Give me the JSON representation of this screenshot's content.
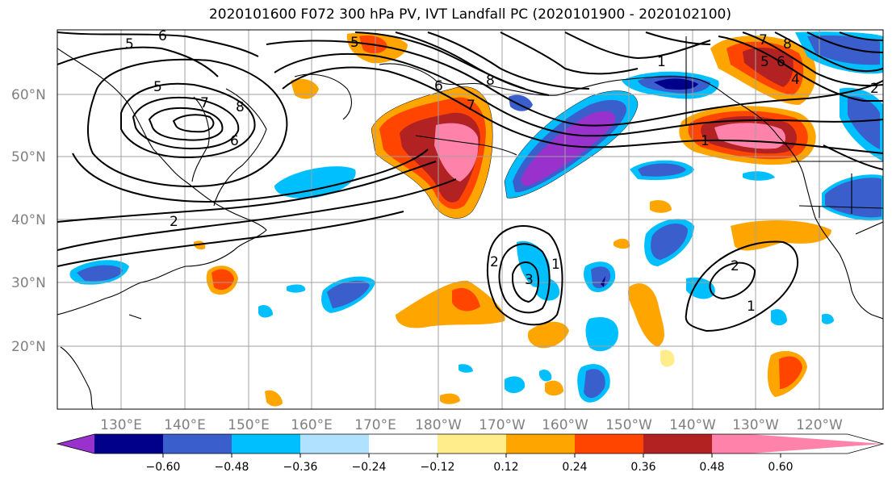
{
  "title": "2020101600 F072 300 hPa PV, IVT Landfall PC (2020101900 - 2020102100)",
  "lat_labels": [
    "60°N",
    "50°N",
    "40°N",
    "30°N",
    "20°N"
  ],
  "lon_labels": [
    "130°E",
    "140°E",
    "150°E",
    "160°E",
    "170°E",
    "180°W",
    "170°W",
    "160°W",
    "150°W",
    "140°W",
    "130°W",
    "120°W"
  ],
  "colorbar": {
    "colors": [
      "#9932cc",
      "#00008b",
      "#3a5fcd",
      "#00bfff",
      "#b0e2ff",
      "#ffffff",
      "#ffec8b",
      "#ffa500",
      "#ff4500",
      "#b22222",
      "#ff82ab"
    ],
    "tick_labels": [
      "−0.60",
      "−0.48",
      "−0.36",
      "−0.24",
      "−0.12",
      "0.12",
      "0.24",
      "0.36",
      "0.48",
      "0.60"
    ]
  },
  "contour_labels": [
    "6",
    "5",
    "5",
    "7",
    "8",
    "6",
    "2",
    "5",
    "6",
    "7",
    "8",
    "1",
    "7",
    "8",
    "6",
    "5",
    "4",
    "1",
    "2",
    "3",
    "1",
    "2",
    "1",
    "2"
  ]
}
